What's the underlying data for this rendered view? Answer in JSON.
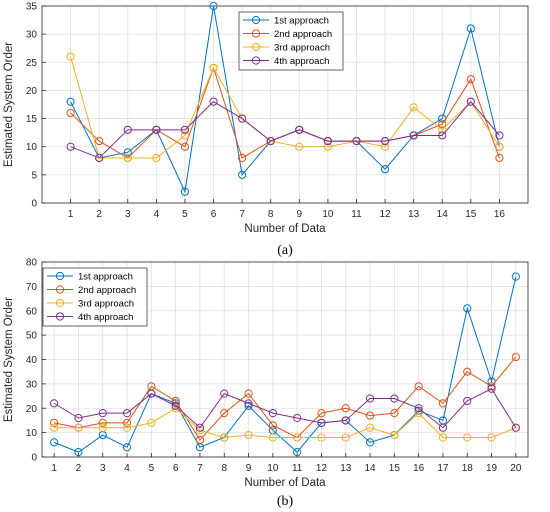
{
  "colors": {
    "s1": "#0072BD",
    "s2": "#D95319",
    "s3": "#EDB120",
    "s4": "#7E2F8E",
    "grid": "#DFDFDF",
    "axis": "#262626"
  },
  "chart_data": [
    {
      "type": "line",
      "caption": "(a)",
      "xlabel": "Number of Data",
      "ylabel": "Estimated System Order",
      "x": [
        1,
        2,
        3,
        4,
        5,
        6,
        7,
        8,
        9,
        10,
        11,
        12,
        13,
        14,
        15,
        16
      ],
      "xlim": [
        0,
        17
      ],
      "ylim": [
        0,
        35
      ],
      "yticks": [
        0,
        5,
        10,
        15,
        20,
        25,
        30,
        35
      ],
      "grid": true,
      "legend_position": "top-center",
      "series": [
        {
          "name": "1st approach",
          "values": [
            18,
            8,
            9,
            13,
            2,
            35,
            5,
            11,
            13,
            11,
            11,
            6,
            12,
            15,
            31,
            10
          ]
        },
        {
          "name": "2nd approach",
          "values": [
            16,
            11,
            8,
            13,
            10,
            24,
            8,
            11,
            13,
            11,
            11,
            11,
            12,
            14,
            22,
            8
          ]
        },
        {
          "name": "3rd approach",
          "values": [
            26,
            8,
            8,
            8,
            12,
            24,
            15,
            11,
            10,
            10,
            11,
            10,
            17,
            13,
            18,
            10
          ]
        },
        {
          "name": "4th approach",
          "values": [
            10,
            8,
            13,
            13,
            13,
            18,
            15,
            11,
            13,
            11,
            11,
            11,
            12,
            12,
            18,
            12
          ]
        }
      ]
    },
    {
      "type": "line",
      "caption": "(b)",
      "xlabel": "Number of Data",
      "ylabel": "Estimated System Order",
      "x": [
        1,
        2,
        3,
        4,
        5,
        6,
        7,
        8,
        9,
        10,
        11,
        12,
        13,
        14,
        15,
        16,
        17,
        18,
        19,
        20
      ],
      "xlim": [
        0.5,
        20.5
      ],
      "ylim": [
        0,
        80
      ],
      "yticks": [
        0,
        10,
        20,
        30,
        40,
        50,
        60,
        70,
        80
      ],
      "grid": true,
      "legend_position": "top-left",
      "series": [
        {
          "name": "1st approach",
          "values": [
            6,
            2,
            9,
            4,
            26,
            22,
            4,
            8,
            21,
            11,
            2,
            14,
            15,
            6,
            9,
            19,
            15,
            61,
            31,
            74
          ]
        },
        {
          "name": "2nd approach",
          "values": [
            14,
            12,
            14,
            14,
            29,
            23,
            7,
            18,
            26,
            13,
            8,
            18,
            20,
            17,
            18,
            29,
            22,
            35,
            29,
            41
          ]
        },
        {
          "name": "3rd approach",
          "values": [
            12,
            12,
            12,
            12,
            14,
            20,
            11,
            8,
            9,
            8,
            8,
            8,
            8,
            12,
            9,
            18,
            8,
            8,
            8,
            12
          ]
        },
        {
          "name": "4th approach",
          "values": [
            22,
            16,
            18,
            18,
            26,
            21,
            12,
            26,
            22,
            18,
            16,
            14,
            15,
            24,
            24,
            20,
            12,
            23,
            28,
            12
          ]
        }
      ]
    }
  ]
}
